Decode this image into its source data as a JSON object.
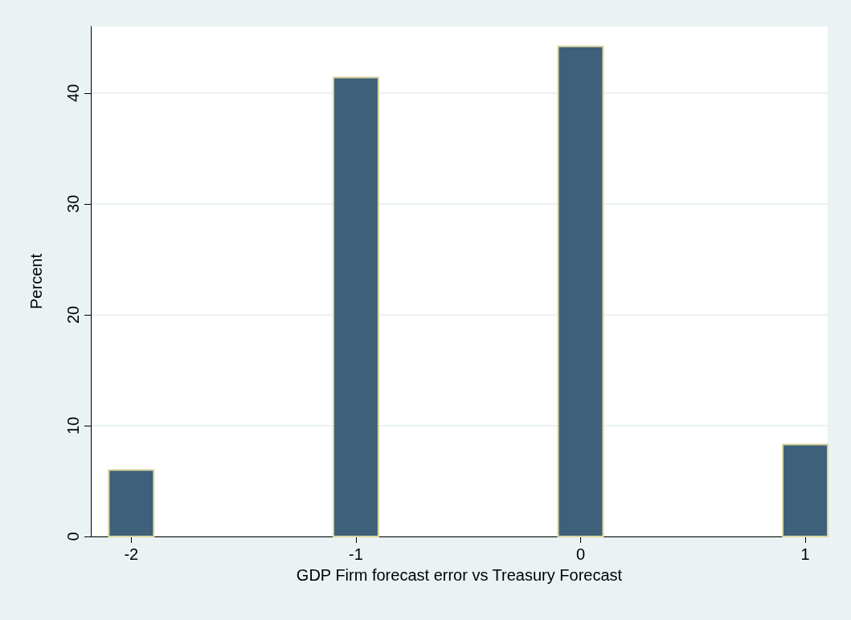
{
  "chart_data": {
    "type": "histogram",
    "xlabel": "GDP Firm forecast error vs Treasury Forecast",
    "ylabel": "Percent",
    "bins": [
      -2.1,
      -1.9,
      -1.1,
      -0.9,
      -0.1,
      0.1,
      0.9,
      1.1
    ],
    "values": [
      6.0,
      0,
      41.4,
      0,
      44.2,
      0,
      8.3
    ],
    "color": "#3e6079",
    "xlim": [
      -2.18,
      1.1
    ],
    "xticks": [
      -2,
      -1,
      0,
      1
    ],
    "ylim": [
      0,
      46
    ],
    "yticks": [
      0,
      10,
      20,
      30,
      40
    ],
    "grid": "y"
  }
}
